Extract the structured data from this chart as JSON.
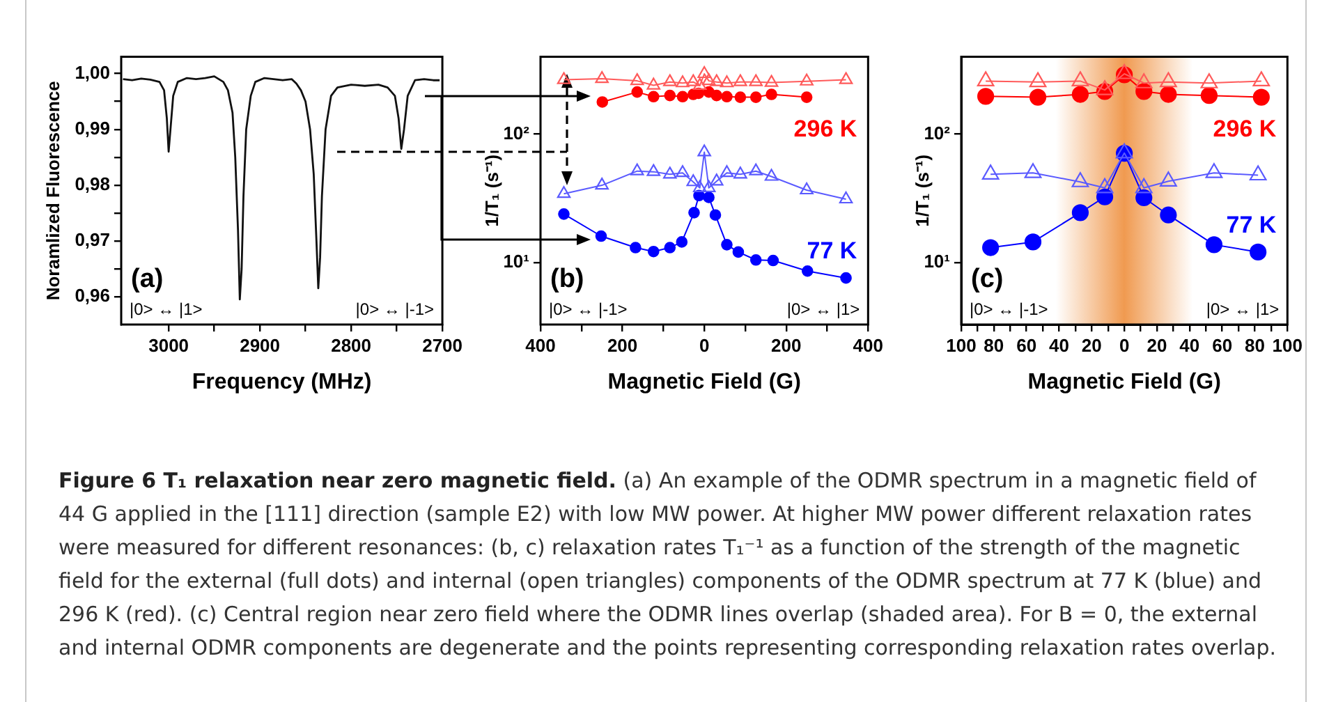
{
  "chart_data": [
    {
      "type": "line",
      "xlabel": "Frequency (MHz)",
      "ylabel": "Noramlized Fluorescence",
      "marker": "none",
      "xlim": [
        3052,
        2700
      ],
      "xticks": [
        3000,
        {
          "value": 2950,
          "label": null
        },
        2900,
        {
          "value": 2850,
          "label": null
        },
        2800,
        {
          "value": 2750,
          "label": null
        },
        2700
      ],
      "ylim": [
        0.955,
        1.003
      ],
      "yticks": [
        {
          "value": 0.96,
          "label": "0,96"
        },
        {
          "value": 0.965,
          "label": null
        },
        {
          "value": 0.97,
          "label": "0,97"
        },
        {
          "value": 0.975,
          "label": null
        },
        {
          "value": 0.98,
          "label": "0,98"
        },
        {
          "value": 0.985,
          "label": null
        },
        {
          "value": 0.99,
          "label": "0,99"
        },
        {
          "value": 0.995,
          "label": null
        },
        {
          "value": 1.0,
          "label": "1,00"
        }
      ],
      "annotations": [
        "(a)",
        "|0> ↔ |1>",
        "|0> ↔ |-1>"
      ],
      "series": [
        {
          "color": "#111111",
          "x": [
            3050,
            3040,
            3030,
            3020,
            3010,
            3005,
            3002,
            3000,
            2998,
            2995,
            2990,
            2980,
            2970,
            2960,
            2950,
            2945,
            2940,
            2935,
            2930,
            2927,
            2924,
            2922,
            2920,
            2918,
            2915,
            2910,
            2905,
            2895,
            2885,
            2875,
            2865,
            2860,
            2855,
            2850,
            2845,
            2841,
            2838,
            2836,
            2834,
            2832,
            2828,
            2822,
            2815,
            2800,
            2785,
            2770,
            2760,
            2752,
            2748,
            2745,
            2742,
            2738,
            2730,
            2720,
            2710,
            2703
          ],
          "values": [
            0.999,
            0.9988,
            0.9991,
            0.9989,
            0.9985,
            0.997,
            0.992,
            0.986,
            0.99,
            0.996,
            0.9985,
            0.9992,
            0.999,
            0.9992,
            0.9995,
            0.999,
            0.9985,
            0.997,
            0.993,
            0.985,
            0.972,
            0.9595,
            0.965,
            0.978,
            0.99,
            0.996,
            0.9985,
            0.9992,
            0.999,
            0.9988,
            0.999,
            0.9982,
            0.997,
            0.995,
            0.99,
            0.982,
            0.97,
            0.9615,
            0.967,
            0.978,
            0.99,
            0.996,
            0.9975,
            0.998,
            0.9978,
            0.998,
            0.9975,
            0.996,
            0.992,
            0.9865,
            0.99,
            0.996,
            0.9988,
            0.999,
            0.9988,
            0.9988
          ]
        }
      ]
    },
    {
      "type": "line",
      "xlabel": "Magnetic Field (G)",
      "ylabel": "1/T₁ (s⁻¹)",
      "log": true,
      "xlim": [
        -400,
        400
      ],
      "xticks": [
        {
          "value": -400,
          "label": "400"
        },
        {
          "value": -300,
          "label": null
        },
        {
          "value": -200,
          "label": "200"
        },
        {
          "value": -100,
          "label": null
        },
        0,
        {
          "value": 100,
          "label": null
        },
        200,
        {
          "value": 300,
          "label": null
        },
        400
      ],
      "ylim": [
        3.3,
        400
      ],
      "yticks": [
        {
          "value": 10,
          "label": "10¹"
        },
        {
          "value": 100,
          "label": "10²"
        }
      ],
      "annotations": [
        "(b)",
        "|0> ↔ |-1>",
        "|0> ↔ |1>"
      ],
      "series": [
        {
          "color": "#ff5a5a",
          "marker": "triangle",
          "x": [
            -343,
            -250,
            -164,
            -124,
            -84,
            -53,
            -27,
            -11,
            0,
            11,
            30,
            55,
            88,
            126,
            164,
            250,
            346
          ],
          "values": [
            265,
            270,
            260,
            240,
            255,
            250,
            255,
            239,
            295,
            260,
            255,
            250,
            255,
            255,
            252,
            258,
            265
          ]
        },
        {
          "name": "296 K",
          "color": "#ff0000",
          "marker": "circle",
          "x": [
            -249,
            -164,
            -124,
            -84,
            -53,
            -27,
            -14,
            11,
            30,
            55,
            88,
            126,
            164,
            250
          ],
          "values": [
            178,
            213,
            196,
            200,
            196,
            204,
            208,
            213,
            200,
            196,
            194,
            194,
            204,
            194
          ]
        },
        {
          "color": "#5a5aff",
          "marker": "triangle",
          "x": [
            -343,
            -250,
            -164,
            -124,
            -84,
            -53,
            -27,
            -11,
            0,
            11,
            30,
            55,
            88,
            126,
            164,
            250,
            346
          ],
          "values": [
            34.4,
            40,
            51.6,
            51,
            48.7,
            50,
            42.5,
            38.2,
            72.5,
            38.2,
            43,
            50,
            48.7,
            51.6,
            46.8,
            36.7,
            31.2
          ]
        },
        {
          "name": "77 K",
          "color": "#0000ff",
          "marker": "circle",
          "x": [
            -343,
            -252,
            -168,
            -124,
            -84,
            -55,
            -25,
            -13,
            11,
            27,
            55,
            83,
            126,
            168,
            252,
            346
          ],
          "values": [
            23.9,
            16.1,
            13.1,
            12.2,
            13.1,
            14.5,
            24.5,
            33.3,
            32.2,
            23.5,
            13.8,
            12.1,
            10.5,
            10.4,
            8.6,
            7.6
          ]
        }
      ]
    },
    {
      "type": "line",
      "xlabel": "Magnetic Field (G)",
      "ylabel": "1/T₁ (s⁻¹)",
      "log": true,
      "xlim": [
        -100,
        100
      ],
      "xticks": [
        {
          "value": -100,
          "label": "100"
        },
        {
          "value": -90,
          "label": null
        },
        {
          "value": -80,
          "label": "80"
        },
        {
          "value": -70,
          "label": null
        },
        {
          "value": -60,
          "label": "60"
        },
        {
          "value": -50,
          "label": null
        },
        {
          "value": -40,
          "label": "40"
        },
        {
          "value": -30,
          "label": null
        },
        {
          "value": -20,
          "label": "20"
        },
        {
          "value": -10,
          "label": null
        },
        0,
        {
          "value": 10,
          "label": null
        },
        20,
        {
          "value": 30,
          "label": null
        },
        40,
        {
          "value": 50,
          "label": null
        },
        60,
        {
          "value": 70,
          "label": null
        },
        80,
        {
          "value": 90,
          "label": null
        },
        100
      ],
      "ylim": [
        3.3,
        400
      ],
      "yticks": [
        {
          "value": 10,
          "label": "10¹"
        },
        {
          "value": 100,
          "label": "10²"
        }
      ],
      "bands": [
        {
          "axis": "x",
          "from": -42,
          "to": 42,
          "color": "#f09a50"
        }
      ],
      "annotations": [
        "(c)",
        "|0> ↔ |-1>",
        "|0> ↔ |1>"
      ],
      "series": [
        {
          "color": "#ff5a5a",
          "marker": "triangle",
          "x": [
            -85,
            -53,
            -27,
            -12,
            0,
            12,
            27,
            52,
            84
          ],
          "values": [
            259,
            255,
            259,
            221,
            295,
            250,
            255,
            250,
            259
          ]
        },
        {
          "name": "296 K",
          "color": "#ff0000",
          "marker": "circle",
          "x": [
            -85,
            -53,
            -27,
            -12,
            0,
            12,
            27,
            52,
            84
          ],
          "values": [
            197,
            194,
            204,
            215,
            290,
            215,
            204,
            200,
            194
          ]
        },
        {
          "color": "#5a5aff",
          "marker": "triangle",
          "x": [
            -82,
            -56,
            -27,
            -12,
            0,
            12,
            27,
            55,
            82
          ],
          "values": [
            48.7,
            50,
            42.5,
            38.2,
            71.3,
            38.2,
            43,
            50,
            48
          ]
        },
        {
          "name": "77 K",
          "color": "#0000ff",
          "marker": "circle",
          "x": [
            -82,
            -56,
            -27,
            -12,
            0,
            12,
            27,
            55,
            82
          ],
          "values": [
            13.1,
            14.5,
            24.5,
            32.5,
            71,
            32,
            23.5,
            13.8,
            12.1
          ]
        }
      ]
    },
    {
      "type": "other",
      "title": "Figure 6  T₁ relaxation near zero magnetic field.",
      "annotations": [
        "(a) An example of the ODMR spectrum in a magnetic field of 44 G applied in the [111] direction (sample E2) with low MW power. At higher MW power different relaxation rates were measured for different resonances: (b, c) relaxation rates T₁⁻¹ as a function of the strength of the magnetic field for the external (full dots) and internal (open triangles) components of the ODMR spectrum at 77 K (blue) and 296 K (red). (c) Central region near zero field where the ODMR lines overlap (shaded area). For B = 0, the external and internal ODMR components are degenerate and the points representing corresponding relaxation rates overlap."
      ]
    }
  ]
}
